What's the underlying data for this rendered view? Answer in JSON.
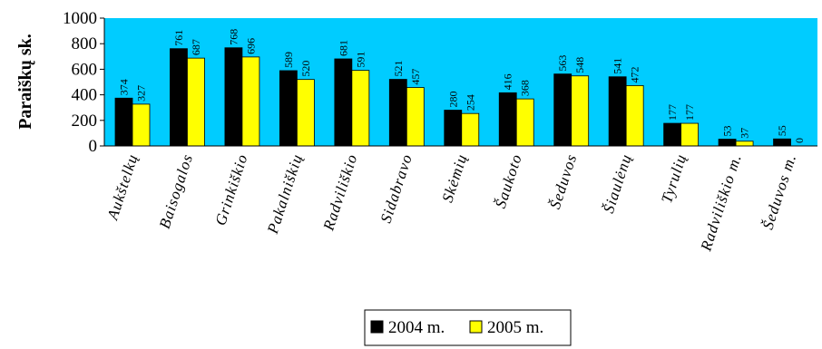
{
  "chart_data": {
    "type": "bar",
    "title": "",
    "xlabel": "",
    "ylabel": "Paraiškų sk.",
    "ylim": [
      0,
      1000
    ],
    "yticks": [
      0,
      200,
      400,
      600,
      800,
      1000
    ],
    "grid": false,
    "legend_position": "bottom",
    "plot_background": "#00ccff",
    "categories": [
      "Aukštelkų",
      "Baisogalos",
      "Grinkiškio",
      "Pakalniškių",
      "Radviliškio",
      "Sidabravo",
      "Skėmių",
      "Šaukoto",
      "Šeduvos",
      "Šiaulėnų",
      "Tyrulių",
      "Radviliškio m.",
      "Šeduvos m."
    ],
    "series": [
      {
        "name": "2004 m.",
        "color": "#000000",
        "values": [
          374,
          761,
          768,
          589,
          681,
          521,
          280,
          416,
          563,
          541,
          177,
          53,
          55
        ]
      },
      {
        "name": "2005 m.",
        "color": "#ffff00",
        "values": [
          327,
          687,
          696,
          520,
          591,
          457,
          254,
          368,
          548,
          472,
          177,
          37,
          0
        ]
      }
    ]
  }
}
